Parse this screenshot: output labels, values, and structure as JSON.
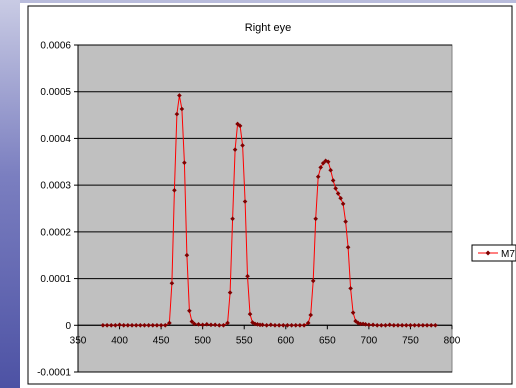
{
  "chart_data": {
    "type": "line",
    "title": "Right eye",
    "xlabel": "",
    "ylabel": "",
    "xlim": [
      350,
      800
    ],
    "ylim": [
      -0.0001,
      0.0006
    ],
    "x_ticks": [
      "350",
      "400",
      "450",
      "500",
      "550",
      "600",
      "650",
      "700",
      "750",
      "800"
    ],
    "y_ticks": [
      "-0.0001",
      "0",
      "0.0001",
      "0.0002",
      "0.0003",
      "0.0004",
      "0.0005",
      "0.0006"
    ],
    "grid": true,
    "legend_position": "right",
    "colors": {
      "plot_bg": "#c0c0c0",
      "line": "#ff0000",
      "marker": "#800000"
    },
    "series": [
      {
        "name": "M7",
        "x": [
          380,
          385,
          390,
          395,
          400,
          405,
          410,
          415,
          420,
          425,
          430,
          435,
          440,
          445,
          450,
          455,
          460,
          463,
          466,
          469,
          472,
          475,
          478,
          481,
          484,
          487,
          490,
          495,
          500,
          505,
          510,
          515,
          520,
          525,
          530,
          533,
          536,
          539,
          542,
          545,
          548,
          551,
          554,
          557,
          560,
          563,
          566,
          569,
          572,
          577,
          582,
          587,
          592,
          597,
          602,
          607,
          612,
          617,
          622,
          627,
          630,
          633,
          636,
          639,
          642,
          645,
          648,
          651,
          654,
          657,
          660,
          663,
          666,
          669,
          672,
          675,
          678,
          681,
          684,
          687,
          690,
          693,
          696,
          700,
          705,
          710,
          715,
          720,
          725,
          730,
          735,
          740,
          745,
          750,
          755,
          760,
          765,
          770,
          775,
          780
        ],
        "values": [
          0.0,
          0.0,
          0.0,
          0.0,
          1e-06,
          0.0,
          0.0,
          0.0,
          0.0,
          0.0,
          0.0,
          0.0,
          0.0,
          0.0,
          0.0,
          0.0,
          5e-06,
          9e-05,
          0.000289,
          0.000452,
          0.000492,
          0.000463,
          0.000348,
          0.00015,
          3.1e-05,
          8e-06,
          3e-06,
          2e-06,
          1e-06,
          2e-06,
          1e-06,
          1e-06,
          0.0,
          0.0,
          5e-06,
          7e-05,
          0.000228,
          0.000376,
          0.000431,
          0.000427,
          0.000385,
          0.000265,
          0.000105,
          2.4e-05,
          6e-06,
          3e-06,
          2e-06,
          1e-06,
          1e-06,
          0.0,
          1e-06,
          0.0,
          0.0,
          0.0,
          0.0,
          0.0,
          0.0,
          0.0,
          0.0,
          5e-06,
          2.2e-05,
          9.5e-05,
          0.000228,
          0.000318,
          0.000338,
          0.000347,
          0.000352,
          0.00035,
          0.000332,
          0.00031,
          0.000293,
          0.000282,
          0.000272,
          0.00026,
          0.000222,
          0.000167,
          7.9e-05,
          2.7e-05,
          9e-06,
          5e-06,
          3e-06,
          3e-06,
          2e-06,
          1e-06,
          1e-06,
          0.0,
          0.0,
          0.0,
          1e-06,
          0.0,
          0.0,
          0.0,
          0.0,
          0.0,
          0.0,
          0.0,
          0.0,
          0.0,
          0.0,
          0.0
        ]
      }
    ]
  }
}
